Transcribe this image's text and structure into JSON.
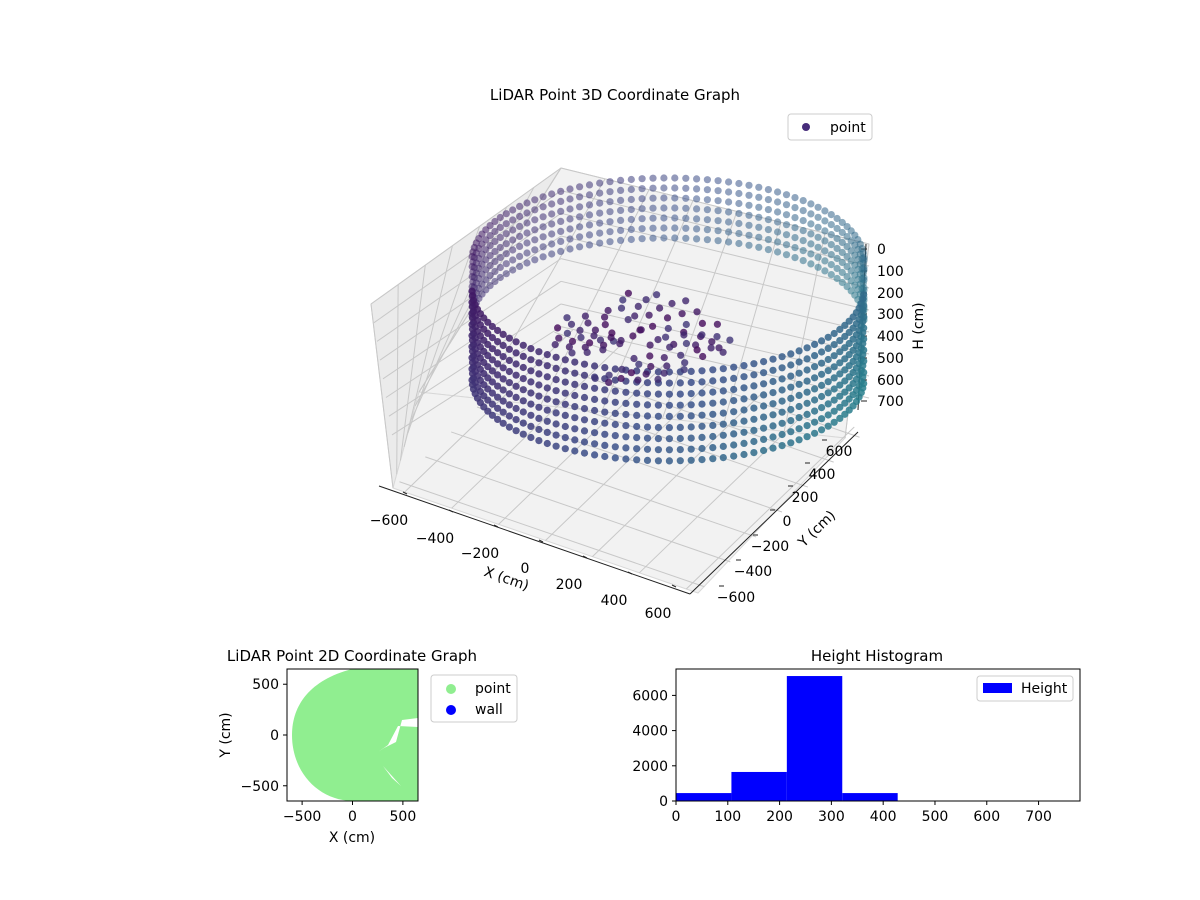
{
  "figure": {
    "chart_data": [
      {
        "type": "scatter",
        "title": "LiDAR Point 3D Coordinate Graph",
        "xlabel": "X (cm)",
        "ylabel": "Y (cm)",
        "zlabel": "H (cm)",
        "xlim": [
          -650,
          650
        ],
        "ylim": [
          -650,
          650
        ],
        "zlim": [
          0,
          780
        ],
        "z_inverted": true,
        "x_ticks": [
          "−600",
          "−400",
          "−200",
          "0",
          "200",
          "400",
          "600"
        ],
        "y_ticks": [
          "−600",
          "−400",
          "−200",
          "0",
          "200",
          "400",
          "600"
        ],
        "z_ticks": [
          "0",
          "100",
          "200",
          "300",
          "400",
          "500",
          "600",
          "700"
        ],
        "legend": {
          "placement": "top-right",
          "entries": [
            {
              "label": "point",
              "color": "#472d7b"
            }
          ]
        },
        "series": [
          {
            "name": "point",
            "color_map": [
              "#440154",
              "#3b528b",
              "#21918c"
            ]
          }
        ],
        "grid": true
      },
      {
        "type": "scatter",
        "title": "LiDAR Point 2D Coordinate Graph",
        "xlabel": "X (cm)",
        "ylabel": "Y (cm)",
        "xlim": [
          -650,
          650
        ],
        "ylim": [
          -650,
          650
        ],
        "x_ticks": [
          "−500",
          "0",
          "500"
        ],
        "y_ticks": [
          "−500",
          "0",
          "500"
        ],
        "legend": {
          "placement": "outside-right",
          "entries": [
            {
              "label": "point",
              "color": "#90ee90"
            },
            {
              "label": "wall",
              "color": "#0000ff"
            }
          ]
        },
        "series": [
          {
            "name": "point",
            "color": "#90ee90"
          },
          {
            "name": "wall",
            "color": "#0000ff"
          }
        ]
      },
      {
        "type": "bar",
        "title": "Height Histogram",
        "bins": [
          [
            0,
            107
          ],
          [
            107,
            214
          ],
          [
            214,
            321
          ],
          [
            321,
            428
          ],
          [
            428,
            535
          ],
          [
            535,
            642
          ],
          [
            642,
            749
          ]
        ],
        "values": [
          450,
          1650,
          7100,
          450,
          0,
          0,
          0
        ],
        "xlim": [
          0,
          780
        ],
        "ylim": [
          0,
          7500
        ],
        "x_ticks": [
          0,
          100,
          200,
          300,
          400,
          500,
          600,
          700
        ],
        "y_ticks": [
          0,
          2000,
          4000,
          6000
        ],
        "legend": {
          "placement": "top-right",
          "entries": [
            {
              "label": "Height",
              "color": "#0000ff"
            }
          ]
        },
        "series": [
          {
            "name": "Height",
            "color": "#0000ff"
          }
        ]
      }
    ]
  }
}
